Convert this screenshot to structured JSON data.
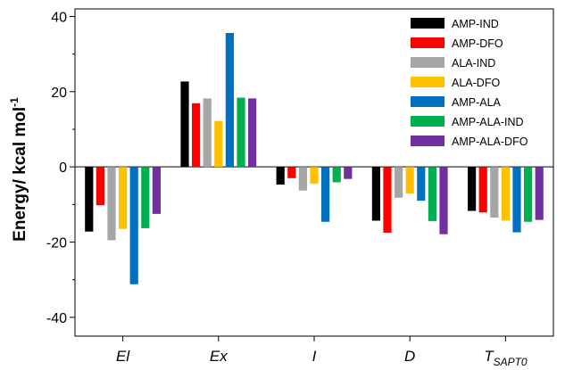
{
  "chart_data": {
    "type": "bar",
    "categories": [
      "El",
      "Ex",
      "I",
      "D",
      "TSAPT0"
    ],
    "category_labels": [
      {
        "main": "El",
        "sub": ""
      },
      {
        "main": "Ex",
        "sub": ""
      },
      {
        "main": "I",
        "sub": ""
      },
      {
        "main": "D",
        "sub": ""
      },
      {
        "main": "T",
        "sub": "SAPT0"
      }
    ],
    "series": [
      {
        "name": "AMP-IND",
        "color": "#000000",
        "values": [
          -17.2,
          22.7,
          -4.7,
          -14.3,
          -11.7
        ]
      },
      {
        "name": "AMP-DFO",
        "color": "#ff0000",
        "values": [
          -10.2,
          16.9,
          -3.0,
          -17.5,
          -12.1
        ]
      },
      {
        "name": "ALA-IND",
        "color": "#a6a6a6",
        "values": [
          -19.5,
          18.2,
          -6.3,
          -8.2,
          -13.5
        ]
      },
      {
        "name": "ALA-DFO",
        "color": "#ffc000",
        "values": [
          -16.5,
          12.2,
          -4.5,
          -7.1,
          -14.3
        ]
      },
      {
        "name": "AMP-ALA",
        "color": "#0070c0",
        "values": [
          -31.2,
          35.6,
          -14.6,
          -9.0,
          -17.4
        ]
      },
      {
        "name": "AMP-ALA-IND",
        "color": "#00b050",
        "values": [
          -16.3,
          18.4,
          -4.1,
          -14.4,
          -14.6
        ]
      },
      {
        "name": "AMP-ALA-DFO",
        "color": "#7030a0",
        "values": [
          -12.5,
          18.2,
          -3.2,
          -17.9,
          -14.1
        ]
      }
    ],
    "title": "",
    "xlabel": "",
    "ylabel": "Energy/ kcal mol",
    "ylabel_superscript": "-1",
    "ylim": [
      -45,
      42
    ],
    "yticks": [
      -40,
      -20,
      0,
      20,
      40
    ],
    "legend_position": "top-right",
    "grid": false
  }
}
